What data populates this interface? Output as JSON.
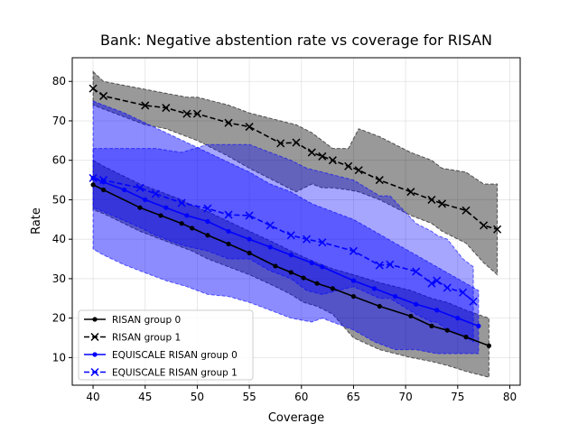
{
  "chart_data": {
    "type": "line",
    "title": "Bank: Negative abstention rate vs coverage for RISAN",
    "xlabel": "Coverage",
    "ylabel": "Rate",
    "xlim": [
      38,
      81
    ],
    "ylim": [
      3,
      86
    ],
    "xticks": [
      40,
      45,
      50,
      55,
      60,
      65,
      70,
      75,
      80
    ],
    "yticks": [
      10,
      20,
      30,
      40,
      50,
      60,
      70,
      80
    ],
    "grid": true,
    "legend_position": "lower-left",
    "series": [
      {
        "name": "RISAN group 0",
        "color": "#000000",
        "dash": "solid",
        "marker": "dot",
        "band_color": "#000000",
        "band_opacity": 0.4,
        "x": [
          40,
          41,
          44.5,
          46.5,
          48.5,
          49.5,
          51,
          53,
          55,
          57.5,
          59,
          60.2,
          61.5,
          63,
          65,
          67.5,
          70.5,
          72.5,
          74,
          75.8,
          78
        ],
        "y": [
          53.8,
          52.5,
          48,
          46,
          44,
          42.8,
          41,
          38.8,
          36.5,
          33.2,
          31.6,
          30.2,
          28.8,
          27.5,
          25.5,
          23,
          20.5,
          18,
          16.9,
          15.2,
          13
        ],
        "lower": [
          47.5,
          46.5,
          42,
          40,
          38,
          37,
          35,
          33,
          31,
          28,
          26,
          24,
          23,
          21,
          15,
          12,
          10,
          9,
          8,
          6.5,
          5
        ],
        "upper": [
          60,
          58.5,
          54,
          52,
          50,
          48.5,
          47,
          44.5,
          42,
          39,
          37,
          35.5,
          34,
          32.5,
          31,
          29,
          27,
          25,
          24,
          22,
          20
        ]
      },
      {
        "name": "RISAN group 1",
        "color": "#000000",
        "dash": "dashed",
        "marker": "x",
        "band_color": "#000000",
        "band_opacity": 0.4,
        "x": [
          40,
          41,
          45,
          47,
          49,
          50,
          53,
          55,
          58,
          59.5,
          61,
          62,
          63,
          64.5,
          65.5,
          67.5,
          70.5,
          72.5,
          73.5,
          75.8,
          77.5,
          78.8
        ],
        "y": [
          78.2,
          76.3,
          73.9,
          73.3,
          71.8,
          71.8,
          69.5,
          68.5,
          64.3,
          64.5,
          62,
          61,
          60,
          58.5,
          57.5,
          55,
          52,
          50,
          49,
          47.3,
          43.5,
          42.5
        ],
        "lower": [
          74,
          73,
          69,
          68,
          66,
          65,
          61,
          58,
          54,
          52,
          54,
          53,
          53,
          52.5,
          52,
          50,
          46,
          44,
          42,
          39,
          34,
          31
        ],
        "upper": [
          82.5,
          80,
          78,
          77,
          76,
          76,
          74,
          72,
          70,
          69,
          67,
          65,
          63,
          63,
          68,
          66,
          62,
          60,
          58,
          57,
          54,
          54
        ]
      },
      {
        "name": "EQUISCALE RISAN group 0",
        "color": "#0000ff",
        "dash": "solid",
        "marker": "dot",
        "band_color": "#0000ff",
        "band_opacity": 0.45,
        "x": [
          40,
          41,
          43,
          45,
          47,
          49,
          51,
          53,
          55,
          57,
          59,
          61,
          62,
          65,
          67,
          69,
          71,
          73,
          75,
          77
        ],
        "y": [
          55.5,
          54.5,
          52.5,
          50,
          48,
          46,
          44.5,
          42,
          40,
          38,
          36,
          34,
          33,
          29.5,
          27.5,
          25.5,
          23.5,
          22,
          20,
          18
        ],
        "lower": [
          37.5,
          36,
          33.5,
          31.5,
          29.5,
          28,
          26,
          25.5,
          24,
          22,
          20,
          19,
          20,
          17,
          14,
          12,
          12,
          11,
          11,
          11
        ],
        "upper": [
          75,
          74,
          72,
          69.5,
          67,
          64.5,
          62,
          59.5,
          57,
          54,
          52,
          49,
          48,
          45,
          42,
          39,
          36,
          33,
          30,
          27
        ]
      },
      {
        "name": "EQUISCALE RISAN group 1",
        "color": "#0000ff",
        "dash": "dashed",
        "marker": "x",
        "band_color": "#0000ff",
        "band_opacity": 0.35,
        "x": [
          40,
          41,
          44.5,
          46,
          48.5,
          51,
          53,
          55,
          57,
          59,
          60.5,
          62,
          65,
          67.5,
          68.5,
          71,
          72.5,
          73,
          74,
          75.5,
          76.5
        ],
        "y": [
          55.5,
          55,
          53,
          51.5,
          49.2,
          47.8,
          46.2,
          46,
          43.5,
          41,
          40,
          39.2,
          37,
          33.4,
          33.6,
          31.8,
          28.8,
          29.5,
          27.7,
          26.5,
          24.2
        ],
        "lower": [
          48,
          47,
          43,
          41,
          38.5,
          37,
          35,
          35,
          32,
          30,
          27,
          26,
          28,
          25,
          25,
          21,
          19,
          19,
          17,
          15.5,
          14
        ],
        "upper": [
          63,
          63,
          63,
          63,
          62,
          64,
          64,
          64,
          62,
          60,
          58,
          57,
          55,
          51,
          51,
          44,
          42,
          41,
          40,
          35,
          33
        ]
      }
    ]
  }
}
